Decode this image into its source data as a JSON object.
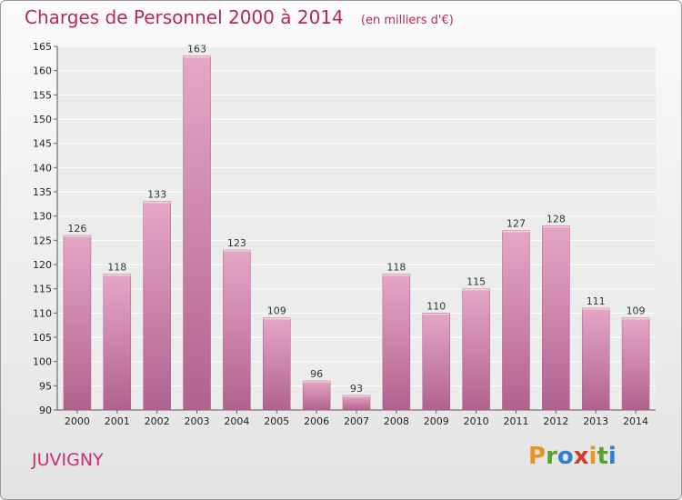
{
  "header": {
    "title": "Charges de Personnel 2000 à 2014",
    "unit": "(en milliers d'€)"
  },
  "footer": {
    "town": "JUVIGNY",
    "brand_letters": [
      "P",
      "r",
      "o",
      "x",
      "i",
      "t",
      "i"
    ],
    "brand_colors": [
      "#e8941e",
      "#5aa02c",
      "#2f7fd0",
      "#d63a2b",
      "#e8941e",
      "#5aa02c",
      "#2f7fd0"
    ]
  },
  "chart_data": {
    "type": "bar",
    "title": "Charges de Personnel 2000 à 2014",
    "subtitle": "(en milliers d'€)",
    "categories": [
      "2000",
      "2001",
      "2002",
      "2003",
      "2004",
      "2005",
      "2006",
      "2007",
      "2008",
      "2009",
      "2010",
      "2011",
      "2012",
      "2013",
      "2014"
    ],
    "values": [
      126,
      118,
      133,
      163,
      123,
      109,
      96,
      93,
      118,
      110,
      115,
      127,
      128,
      111,
      109
    ],
    "ylim": [
      90,
      165
    ],
    "yticks": [
      90,
      95,
      100,
      105,
      110,
      115,
      120,
      125,
      130,
      135,
      140,
      145,
      150,
      155,
      160,
      165
    ],
    "bar_color": "#c96b9c",
    "grid": true,
    "xlabel": "",
    "ylabel": ""
  }
}
